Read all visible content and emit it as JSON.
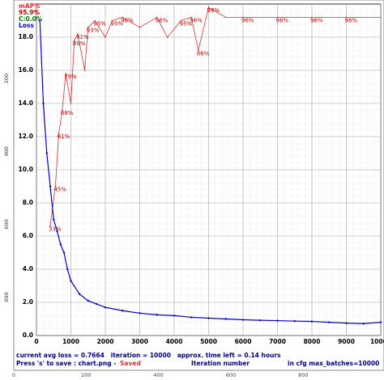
{
  "chart_data": {
    "type": "line",
    "x_label": "Iteration number",
    "xlim": [
      0,
      10000
    ],
    "xticks": [
      0,
      1000,
      2000,
      3000,
      4000,
      5000,
      6000,
      7000,
      8000,
      9000,
      10000
    ],
    "ylim": [
      0,
      20
    ],
    "yticks": [
      {
        "value": 0,
        "label": "0.0"
      },
      {
        "value": 2,
        "label": "2.0"
      },
      {
        "value": 4,
        "label": "4.0"
      },
      {
        "value": 6,
        "label": "6.0"
      },
      {
        "value": 8,
        "label": "8.0"
      },
      {
        "value": 10,
        "label": "10.0"
      },
      {
        "value": 12,
        "label": "12.0"
      },
      {
        "value": 14,
        "label": "14.0"
      },
      {
        "value": 16,
        "label": "16.0"
      },
      {
        "value": 18,
        "label": "18.0"
      }
    ],
    "y2lim": [
      0,
      100
    ],
    "grid": true,
    "legend_position": "upper left",
    "legend_notes": [
      {
        "text": "95.9%",
        "color": "#d00000"
      },
      {
        "text": "C:0.0%",
        "color": "#008000"
      }
    ],
    "series": [
      {
        "name": "mAP%",
        "color": "#e03030",
        "axis": "y2",
        "x": [
          400,
          550,
          650,
          750,
          850,
          1000,
          1100,
          1200,
          1400,
          1500,
          1700,
          2000,
          2200,
          2500,
          3000,
          3500,
          3800,
          4200,
          4500,
          4700,
          5000,
          5500,
          6000,
          7000,
          8000,
          9000,
          10000
        ],
        "values": [
          33,
          45,
          61,
          68,
          79,
          70,
          89,
          91,
          80,
          93,
          95,
          90,
          95,
          96,
          93,
          96,
          90,
          95,
          96,
          86,
          99,
          96,
          96,
          96,
          96,
          96,
          96
        ],
        "value_labels": [
          "33%",
          "45%",
          "61%",
          "68%",
          "79%",
          null,
          "89%",
          "91%",
          null,
          "93%",
          "95%",
          null,
          "95%",
          "96%",
          null,
          "96%",
          null,
          "95%",
          "96%",
          "86%",
          "99%",
          null,
          "96%",
          "96%",
          "96%",
          "96%",
          null
        ]
      },
      {
        "name": "Loss",
        "color": "#0000d0",
        "x": [
          100,
          200,
          300,
          400,
          500,
          600,
          700,
          800,
          900,
          1000,
          1250,
          1500,
          1750,
          2000,
          2500,
          3000,
          3500,
          4000,
          4500,
          5000,
          5500,
          6000,
          6500,
          7000,
          7500,
          8000,
          8500,
          9000,
          9500,
          10000
        ],
        "values": [
          19,
          14,
          11,
          9,
          7,
          6.3,
          5.5,
          5,
          4,
          3.3,
          2.5,
          2.1,
          1.9,
          1.7,
          1.5,
          1.35,
          1.25,
          1.2,
          1.1,
          1.05,
          1,
          0.95,
          0.92,
          0.9,
          0.87,
          0.85,
          0.8,
          0.75,
          0.72,
          0.8
        ]
      }
    ],
    "status": {
      "loss_line": "current avg loss = 0.7664   iteration = 10000   approx. time left = 0.14 hours",
      "save_line": "Press 's' to save : chart.png -",
      "saved": "Saved",
      "cfg_line": "in cfg max_batches=10000"
    }
  },
  "ruler": {
    "xticks": [
      0,
      200,
      400,
      600,
      800
    ],
    "yticks": [
      200,
      400,
      600,
      800
    ]
  }
}
